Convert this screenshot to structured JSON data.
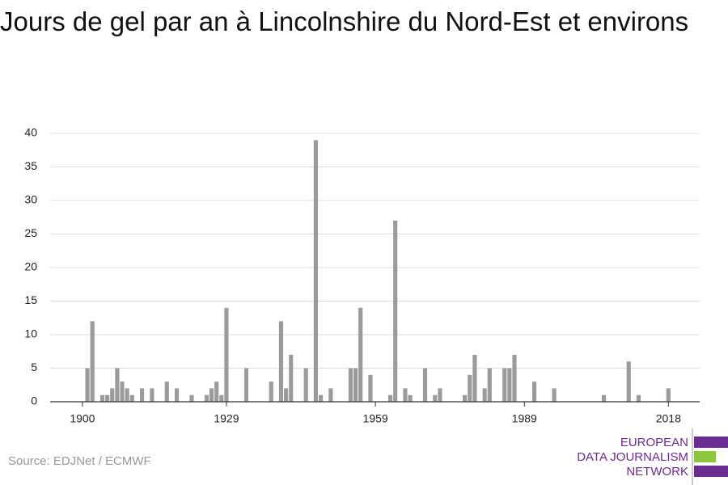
{
  "chart_data": {
    "type": "bar",
    "title": "Jours de gel par an à Lincolnshire du Nord-Est et environs",
    "x": [
      1900,
      1901,
      1902,
      1903,
      1904,
      1905,
      1906,
      1907,
      1908,
      1909,
      1910,
      1911,
      1912,
      1913,
      1914,
      1915,
      1916,
      1917,
      1918,
      1919,
      1920,
      1921,
      1922,
      1923,
      1924,
      1925,
      1926,
      1927,
      1928,
      1929,
      1930,
      1931,
      1932,
      1933,
      1934,
      1935,
      1936,
      1937,
      1938,
      1939,
      1940,
      1941,
      1942,
      1943,
      1944,
      1945,
      1946,
      1947,
      1948,
      1949,
      1950,
      1951,
      1952,
      1953,
      1954,
      1955,
      1956,
      1957,
      1958,
      1959,
      1960,
      1961,
      1962,
      1963,
      1964,
      1965,
      1966,
      1967,
      1968,
      1969,
      1970,
      1971,
      1972,
      1973,
      1974,
      1975,
      1976,
      1977,
      1978,
      1979,
      1980,
      1981,
      1982,
      1983,
      1984,
      1985,
      1986,
      1987,
      1988,
      1989,
      1990,
      1991,
      1992,
      1993,
      1994,
      1995,
      1996,
      1997,
      1998,
      1999,
      2000,
      2001,
      2002,
      2003,
      2004,
      2005,
      2006,
      2007,
      2008,
      2009,
      2010,
      2011,
      2012,
      2013,
      2014,
      2015,
      2016,
      2017,
      2018
    ],
    "values": [
      0,
      5,
      12,
      0,
      1,
      1,
      2,
      5,
      3,
      2,
      1,
      0,
      2,
      0,
      2,
      0,
      0,
      3,
      0,
      2,
      0,
      0,
      1,
      0,
      0,
      1,
      2,
      3,
      1,
      14,
      0,
      0,
      0,
      5,
      0,
      0,
      0,
      0,
      3,
      0,
      12,
      2,
      7,
      0,
      0,
      5,
      0,
      39,
      1,
      0,
      2,
      0,
      0,
      0,
      5,
      5,
      14,
      0,
      4,
      0,
      0,
      0,
      1,
      27,
      0,
      2,
      1,
      0,
      0,
      5,
      0,
      1,
      2,
      0,
      0,
      0,
      0,
      1,
      4,
      7,
      0,
      2,
      5,
      0,
      0,
      5,
      5,
      7,
      0,
      0,
      0,
      3,
      0,
      0,
      0,
      2,
      0,
      0,
      0,
      0,
      0,
      0,
      0,
      0,
      0,
      1,
      0,
      0,
      0,
      0,
      6,
      0,
      1,
      0,
      0,
      0,
      0,
      0,
      2
    ],
    "color": "#9b9b9b",
    "xlim": [
      1893.5,
      2024.3
    ],
    "xticks": [
      1900,
      1929,
      1959,
      1989,
      2018
    ],
    "ylim": [
      0,
      40
    ],
    "yticks": [
      0,
      5,
      10,
      15,
      20,
      25,
      30,
      35,
      40
    ],
    "grid": true
  },
  "footer": {
    "source": "Source: EDJNet / ECMWF",
    "logo": [
      "EUROPEAN",
      "DATA JOURNALISM",
      "NETWORK"
    ]
  }
}
